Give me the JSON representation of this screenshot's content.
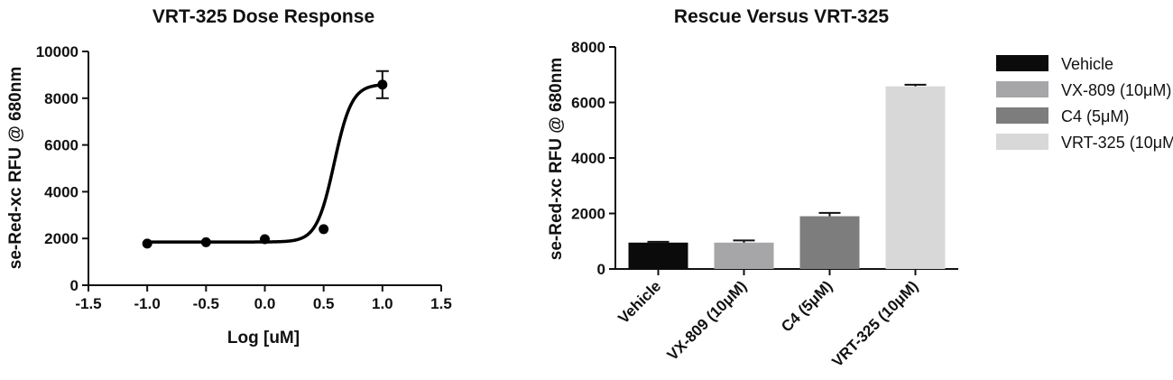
{
  "chart_data": [
    {
      "type": "scatter",
      "title": "VRT-325 Dose Response",
      "xlabel": "Log [uM]",
      "ylabel": "se-Red-xc RFU @ 680nm",
      "xlim": [
        -1.5,
        1.5
      ],
      "ylim": [
        0,
        10000
      ],
      "xticks": [
        -1.5,
        -1.0,
        -0.5,
        0.0,
        0.5,
        1.0,
        1.5
      ],
      "xtick_labels": [
        "-1.5",
        "-1.0",
        "-0.5",
        "0.0",
        "0.5",
        "1.0",
        "1.5"
      ],
      "yticks": [
        0,
        2000,
        4000,
        6000,
        8000,
        10000
      ],
      "ytick_labels": [
        "0",
        "2000",
        "4000",
        "6000",
        "8000",
        "10000"
      ],
      "points": [
        {
          "x": -1.0,
          "y": 1780,
          "err": 0
        },
        {
          "x": -0.5,
          "y": 1840,
          "err": 0
        },
        {
          "x": 0.0,
          "y": 1970,
          "err": 0
        },
        {
          "x": 0.5,
          "y": 2400,
          "err": 0
        },
        {
          "x": 1.0,
          "y": 8580,
          "err": 580
        }
      ],
      "fit_curve": {
        "bottom": 1850,
        "top": 8600,
        "log_ec50": 0.59,
        "hill": 5.8
      },
      "grid": false,
      "color": "#000000"
    },
    {
      "type": "bar",
      "title": "Rescue Versus VRT-325",
      "xlabel": "",
      "ylabel": "se-Red-xc RFU @ 680nm",
      "ylim": [
        0,
        8000
      ],
      "yticks": [
        0,
        2000,
        4000,
        6000,
        8000
      ],
      "ytick_labels": [
        "0",
        "2000",
        "4000",
        "6000",
        "8000"
      ],
      "categories": [
        "Vehicle",
        "VX-809 (10μM)",
        "C4 (5μM)",
        "VRT-325 (10μM)"
      ],
      "values": [
        950,
        950,
        1900,
        6580
      ],
      "errors": [
        30,
        80,
        120,
        60
      ],
      "colors": [
        "#0b0b0b",
        "#a6a6a8",
        "#7d7d7d",
        "#d8d8d8"
      ],
      "legend_position": "right",
      "grid": false
    }
  ]
}
